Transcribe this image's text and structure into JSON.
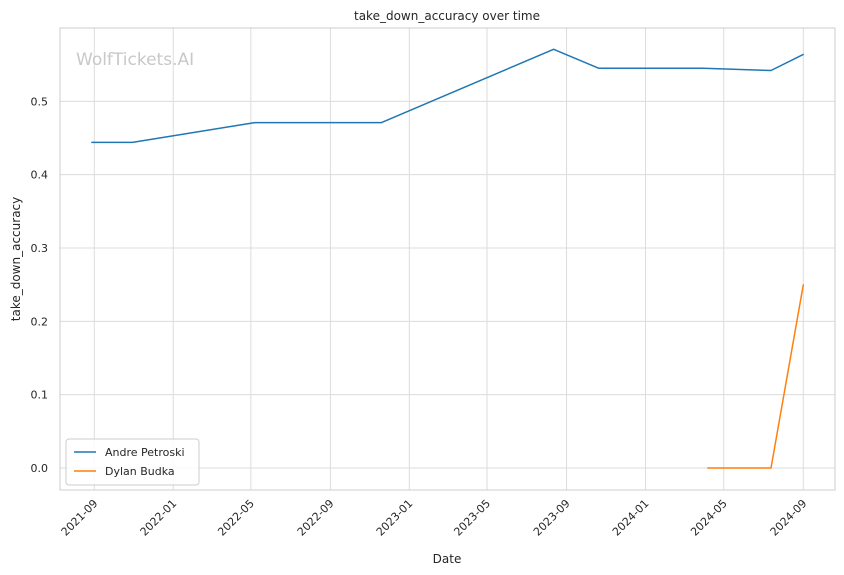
{
  "chart_data": {
    "type": "line",
    "title": "take_down_accuracy over time",
    "xlabel": "Date",
    "ylabel": "take_down_accuracy",
    "watermark": "WolfTickets.AI",
    "x_ticks": [
      "2021-09",
      "2022-01",
      "2022-05",
      "2022-09",
      "2023-01",
      "2023-05",
      "2023-09",
      "2024-01",
      "2024-05",
      "2024-09"
    ],
    "y_ticks": [
      "0.0",
      "0.1",
      "0.2",
      "0.3",
      "0.4",
      "0.5"
    ],
    "xlim": [
      "2021-07-10",
      "2024-10-20"
    ],
    "ylim": [
      -0.03,
      0.6
    ],
    "grid": true,
    "legend_position": "lower-left",
    "series": [
      {
        "name": "Andre Petroski",
        "color": "#1f77b4",
        "points": [
          {
            "x": "2021-08-28",
            "y": 0.444
          },
          {
            "x": "2021-10-30",
            "y": 0.444
          },
          {
            "x": "2022-05-07",
            "y": 0.471
          },
          {
            "x": "2022-11-19",
            "y": 0.471
          },
          {
            "x": "2023-08-12",
            "y": 0.571
          },
          {
            "x": "2023-10-21",
            "y": 0.545
          },
          {
            "x": "2024-03-30",
            "y": 0.545
          },
          {
            "x": "2024-07-13",
            "y": 0.542
          },
          {
            "x": "2024-09-01",
            "y": 0.564
          }
        ]
      },
      {
        "name": "Dylan Budka",
        "color": "#ff7f0e",
        "points": [
          {
            "x": "2024-04-06",
            "y": 0.0
          },
          {
            "x": "2024-07-13",
            "y": 0.0
          },
          {
            "x": "2024-09-01",
            "y": 0.25
          }
        ]
      }
    ]
  }
}
